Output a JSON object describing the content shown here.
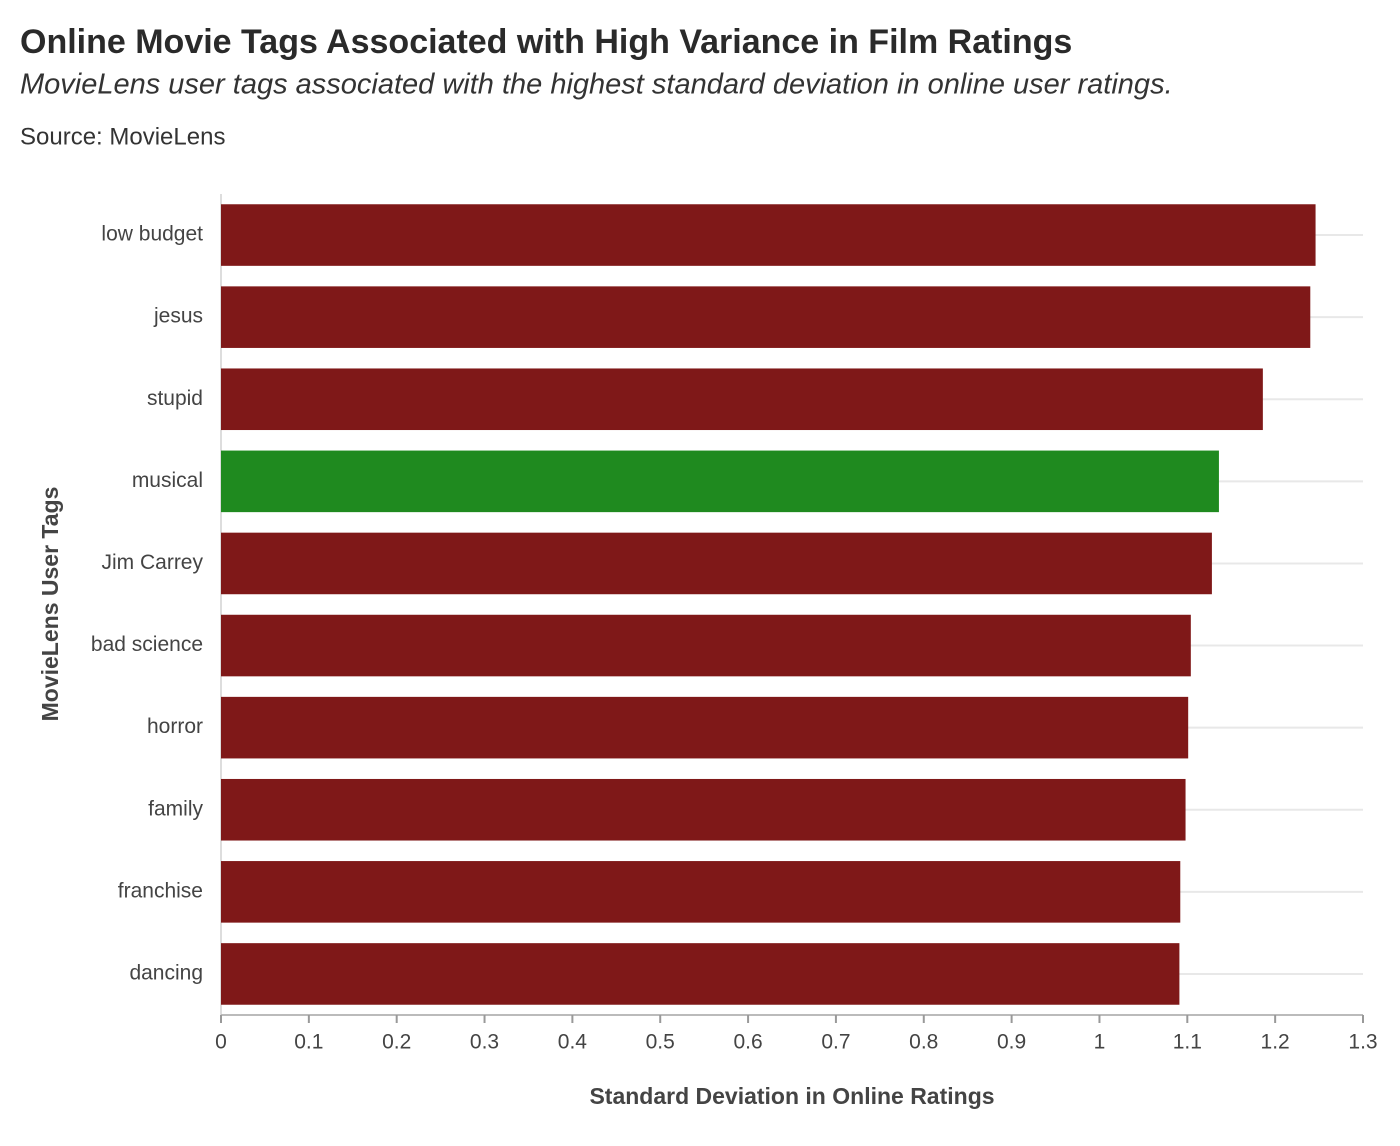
{
  "chart_data": {
    "type": "bar",
    "orientation": "horizontal",
    "title": "Online Movie Tags Associated with High Variance in Film Ratings",
    "subtitle": "MovieLens user tags associated with the highest standard deviation in online user ratings.",
    "source": "Source: MovieLens",
    "x_label": "Standard Deviation in Online Ratings",
    "y_label": "MovieLens User Tags",
    "categories": [
      "low budget",
      "jesus",
      "stupid",
      "musical",
      "Jim Carrey",
      "bad science",
      "horror",
      "family",
      "franchise",
      "dancing"
    ],
    "values": [
      1.246,
      1.24,
      1.186,
      1.136,
      1.128,
      1.104,
      1.101,
      1.098,
      1.092,
      1.091
    ],
    "colors": [
      "#7f1818",
      "#7f1818",
      "#7f1818",
      "#1f8a1f",
      "#7f1818",
      "#7f1818",
      "#7f1818",
      "#7f1818",
      "#7f1818",
      "#7f1818"
    ],
    "xlim": [
      0,
      1.3
    ],
    "xticks": [
      0,
      0.1,
      0.2,
      0.3,
      0.4,
      0.5,
      0.6,
      0.7,
      0.8,
      0.9,
      1,
      1.1,
      1.2,
      1.3
    ],
    "grid": true
  }
}
